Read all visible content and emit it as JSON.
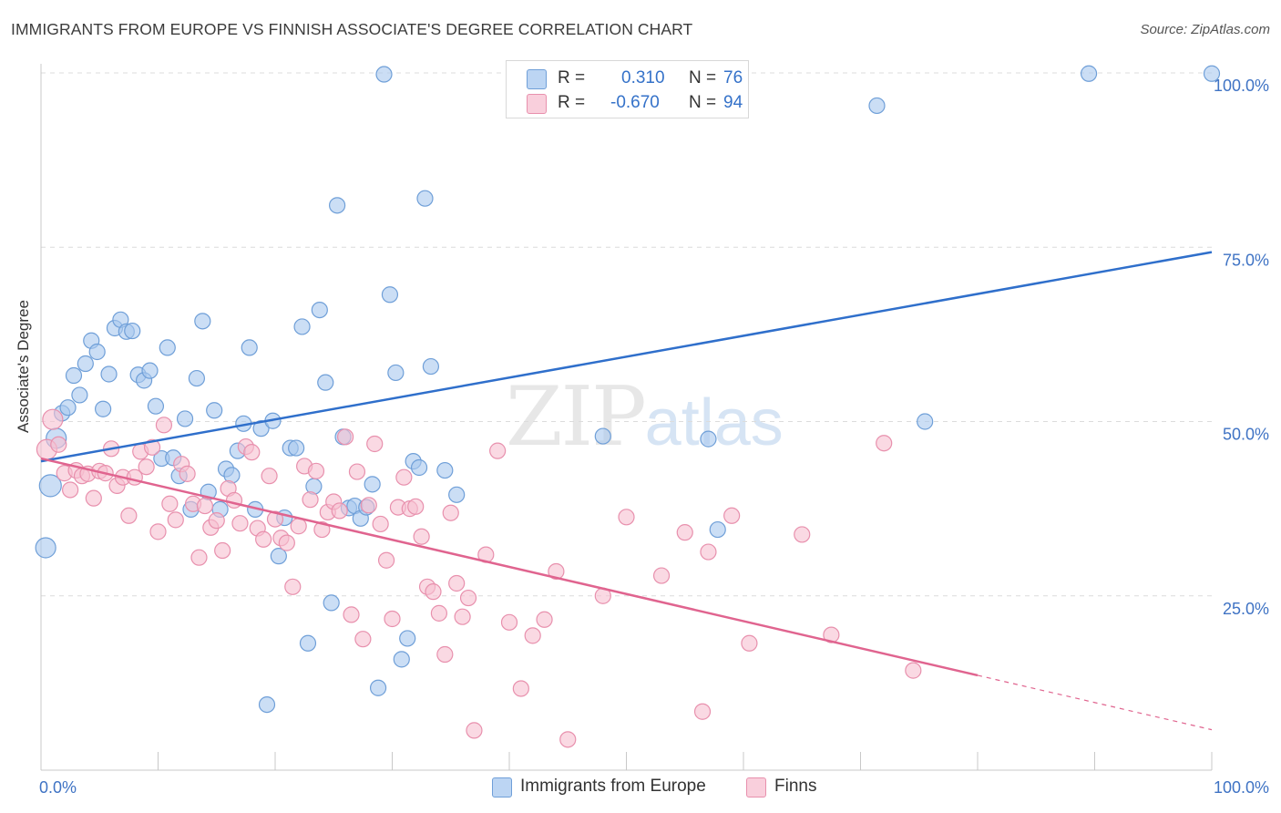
{
  "header": {
    "title": "IMMIGRANTS FROM EUROPE VS FINNISH ASSOCIATE'S DEGREE CORRELATION CHART",
    "source": "Source: ZipAtlas.com"
  },
  "watermark": {
    "zip": "ZIP",
    "atlas": "atlas"
  },
  "legend_top": {
    "rows": [
      {
        "r_label": "R =",
        "r_value": "0.310",
        "n_label": "N =",
        "n_value": "76"
      },
      {
        "r_label": "R =",
        "r_value": "-0.670",
        "n_label": "N =",
        "n_value": "94"
      }
    ]
  },
  "legend_bottom": {
    "items": [
      {
        "label": "Immigrants from Europe"
      },
      {
        "label": "Finns"
      }
    ]
  },
  "colors": {
    "blue_fill": "#a9c8ef",
    "blue_stroke": "#6f9fd8",
    "blue_line": "#2f6fcb",
    "pink_fill": "#f6bfd0",
    "pink_stroke": "#e890ad",
    "pink_line": "#e0648f",
    "tick_text": "#3f73c4",
    "grid": "#dcdcdc"
  },
  "chart_data": {
    "type": "scatter",
    "title": "IMMIGRANTS FROM EUROPE VS FINNISH ASSOCIATE'S DEGREE CORRELATION CHART",
    "xlabel": "",
    "ylabel": "Associate's Degree",
    "xlim": [
      0,
      100
    ],
    "ylim": [
      0,
      103
    ],
    "x_tick_labels": [
      {
        "value": 0,
        "label": "0.0%"
      },
      {
        "value": 100,
        "label": "100.0%"
      }
    ],
    "y_tick_labels": [
      {
        "value": 25,
        "label": "25.0%"
      },
      {
        "value": 50,
        "label": "50.0%"
      },
      {
        "value": 75,
        "label": "75.0%"
      },
      {
        "value": 100,
        "label": "100.0%"
      }
    ],
    "grid": true,
    "legend_position": "top-center",
    "series": [
      {
        "name": "Immigrants from Europe",
        "color": "#a9c8ef",
        "trend": {
          "x": [
            0,
            100
          ],
          "y": [
            44.3,
            74.3
          ]
        },
        "points": [
          [
            0.4,
            31.9
          ],
          [
            0.8,
            40.8
          ],
          [
            1.3,
            47.6
          ],
          [
            1.8,
            51.2
          ],
          [
            2.3,
            52.0
          ],
          [
            2.8,
            56.6
          ],
          [
            3.3,
            53.8
          ],
          [
            3.8,
            58.3
          ],
          [
            4.3,
            61.6
          ],
          [
            4.8,
            60.0
          ],
          [
            5.3,
            51.8
          ],
          [
            5.8,
            56.8
          ],
          [
            6.3,
            63.4
          ],
          [
            6.8,
            64.6
          ],
          [
            7.3,
            62.9
          ],
          [
            7.8,
            63.0
          ],
          [
            8.3,
            56.7
          ],
          [
            8.8,
            55.9
          ],
          [
            9.3,
            57.3
          ],
          [
            9.8,
            52.2
          ],
          [
            10.3,
            44.7
          ],
          [
            10.8,
            60.6
          ],
          [
            11.3,
            44.8
          ],
          [
            11.8,
            42.2
          ],
          [
            12.3,
            50.4
          ],
          [
            12.8,
            37.4
          ],
          [
            13.3,
            56.2
          ],
          [
            13.8,
            64.4
          ],
          [
            14.3,
            39.9
          ],
          [
            14.8,
            51.6
          ],
          [
            15.3,
            37.4
          ],
          [
            15.8,
            43.2
          ],
          [
            16.3,
            42.3
          ],
          [
            16.8,
            45.8
          ],
          [
            17.3,
            49.7
          ],
          [
            17.8,
            60.6
          ],
          [
            18.3,
            37.4
          ],
          [
            18.8,
            49.0
          ],
          [
            19.3,
            9.4
          ],
          [
            19.8,
            50.1
          ],
          [
            20.3,
            30.7
          ],
          [
            20.8,
            36.2
          ],
          [
            21.3,
            46.2
          ],
          [
            21.8,
            46.2
          ],
          [
            22.3,
            63.6
          ],
          [
            22.8,
            18.2
          ],
          [
            23.3,
            40.7
          ],
          [
            23.8,
            66.0
          ],
          [
            24.3,
            55.6
          ],
          [
            24.8,
            24.0
          ],
          [
            25.3,
            81.0
          ],
          [
            25.8,
            47.8
          ],
          [
            26.3,
            37.6
          ],
          [
            26.8,
            37.9
          ],
          [
            27.3,
            36.1
          ],
          [
            27.8,
            37.7
          ],
          [
            28.3,
            41.0
          ],
          [
            28.8,
            11.8
          ],
          [
            29.3,
            99.8
          ],
          [
            29.8,
            68.2
          ],
          [
            30.3,
            57.0
          ],
          [
            30.8,
            15.9
          ],
          [
            31.3,
            18.9
          ],
          [
            31.8,
            44.3
          ],
          [
            32.3,
            43.4
          ],
          [
            32.8,
            82.0
          ],
          [
            33.3,
            57.9
          ],
          [
            34.5,
            43.0
          ],
          [
            35.5,
            39.5
          ],
          [
            48.0,
            47.9
          ],
          [
            57.0,
            47.5
          ],
          [
            57.8,
            34.5
          ],
          [
            71.4,
            95.3
          ],
          [
            75.5,
            50.0
          ],
          [
            89.5,
            99.9
          ],
          [
            100.0,
            99.9
          ]
        ]
      },
      {
        "name": "Finns",
        "color": "#f6bfd0",
        "trend": {
          "x": [
            0,
            80
          ],
          "y": [
            44.7,
            13.6
          ]
        },
        "trend_extension": {
          "x": [
            80,
            100
          ],
          "y": [
            13.6,
            5.8
          ]
        },
        "points": [
          [
            0.5,
            46.0
          ],
          [
            1.0,
            50.3
          ],
          [
            1.5,
            46.7
          ],
          [
            2.0,
            42.6
          ],
          [
            2.5,
            40.2
          ],
          [
            3.0,
            43.0
          ],
          [
            3.5,
            42.2
          ],
          [
            4.0,
            42.5
          ],
          [
            4.5,
            39.0
          ],
          [
            5.0,
            42.9
          ],
          [
            5.5,
            42.6
          ],
          [
            6.0,
            46.1
          ],
          [
            6.5,
            40.8
          ],
          [
            7.0,
            42.0
          ],
          [
            7.5,
            36.5
          ],
          [
            8.0,
            42.0
          ],
          [
            8.5,
            45.7
          ],
          [
            9.0,
            43.5
          ],
          [
            9.5,
            46.3
          ],
          [
            10.0,
            34.2
          ],
          [
            10.5,
            49.5
          ],
          [
            11.0,
            38.2
          ],
          [
            11.5,
            35.9
          ],
          [
            12.0,
            43.9
          ],
          [
            12.5,
            42.5
          ],
          [
            13.0,
            38.2
          ],
          [
            13.5,
            30.5
          ],
          [
            14.0,
            37.9
          ],
          [
            14.5,
            34.8
          ],
          [
            15.0,
            35.8
          ],
          [
            15.5,
            31.5
          ],
          [
            16.0,
            40.4
          ],
          [
            16.5,
            38.7
          ],
          [
            17.0,
            35.4
          ],
          [
            17.5,
            46.4
          ],
          [
            18.0,
            45.6
          ],
          [
            18.5,
            34.7
          ],
          [
            19.0,
            33.1
          ],
          [
            19.5,
            42.2
          ],
          [
            20.0,
            36.0
          ],
          [
            20.5,
            33.3
          ],
          [
            21.0,
            32.6
          ],
          [
            21.5,
            26.3
          ],
          [
            22.0,
            35.0
          ],
          [
            22.5,
            43.6
          ],
          [
            23.0,
            38.8
          ],
          [
            23.5,
            42.9
          ],
          [
            24.0,
            34.5
          ],
          [
            24.5,
            37.0
          ],
          [
            25.0,
            38.5
          ],
          [
            25.5,
            37.2
          ],
          [
            26.0,
            47.8
          ],
          [
            26.5,
            22.3
          ],
          [
            27.0,
            42.8
          ],
          [
            27.5,
            18.8
          ],
          [
            28.0,
            38.0
          ],
          [
            28.5,
            46.8
          ],
          [
            29.0,
            35.3
          ],
          [
            29.5,
            30.1
          ],
          [
            30.0,
            21.7
          ],
          [
            30.5,
            37.7
          ],
          [
            31.0,
            42.0
          ],
          [
            31.5,
            37.5
          ],
          [
            32.0,
            37.8
          ],
          [
            32.5,
            33.5
          ],
          [
            33.0,
            26.3
          ],
          [
            33.5,
            25.6
          ],
          [
            34.0,
            22.5
          ],
          [
            34.5,
            16.6
          ],
          [
            35.0,
            36.9
          ],
          [
            35.5,
            26.8
          ],
          [
            36.0,
            22.0
          ],
          [
            36.5,
            24.7
          ],
          [
            37.0,
            5.7
          ],
          [
            38.0,
            30.9
          ],
          [
            39.0,
            45.8
          ],
          [
            40.0,
            21.2
          ],
          [
            41.0,
            11.7
          ],
          [
            42.0,
            19.3
          ],
          [
            43.0,
            21.6
          ],
          [
            44.0,
            28.5
          ],
          [
            45.0,
            4.4
          ],
          [
            48.0,
            25.0
          ],
          [
            50.0,
            36.3
          ],
          [
            53.0,
            27.9
          ],
          [
            55.0,
            34.1
          ],
          [
            56.5,
            8.4
          ],
          [
            57.0,
            31.3
          ],
          [
            59.0,
            36.5
          ],
          [
            60.5,
            18.2
          ],
          [
            65.0,
            33.8
          ],
          [
            67.5,
            19.4
          ],
          [
            72.0,
            46.9
          ],
          [
            74.5,
            14.3
          ]
        ]
      }
    ]
  }
}
